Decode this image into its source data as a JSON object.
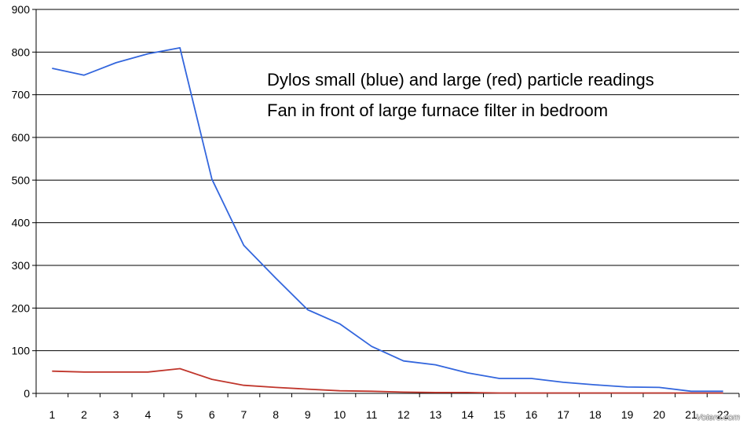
{
  "chart_data": {
    "type": "line",
    "x": [
      1,
      2,
      3,
      4,
      5,
      6,
      7,
      8,
      9,
      10,
      11,
      12,
      13,
      14,
      15,
      16,
      17,
      18,
      19,
      20,
      21,
      22
    ],
    "ylim": [
      0,
      900
    ],
    "yticks": [
      0,
      100,
      200,
      300,
      400,
      500,
      600,
      700,
      800,
      900
    ],
    "grid": true,
    "series": [
      {
        "color": "#3366dd",
        "values": [
          762,
          746,
          775,
          796,
          810,
          502,
          347,
          270,
          196,
          163,
          110,
          76,
          67,
          48,
          35,
          35,
          26,
          20,
          15,
          14,
          5,
          5
        ]
      },
      {
        "color": "#c0362c",
        "values": [
          52,
          50,
          50,
          50,
          58,
          33,
          19,
          14,
          10,
          6,
          5,
          3,
          2,
          2,
          1,
          1,
          1,
          1,
          1,
          1,
          1,
          1
        ]
      }
    ],
    "annotations": [
      "Dylos small (blue) and large (red) particle readings",
      "Fan in front of large furnace filter in bedroom"
    ],
    "watermark": "Votero.com"
  }
}
